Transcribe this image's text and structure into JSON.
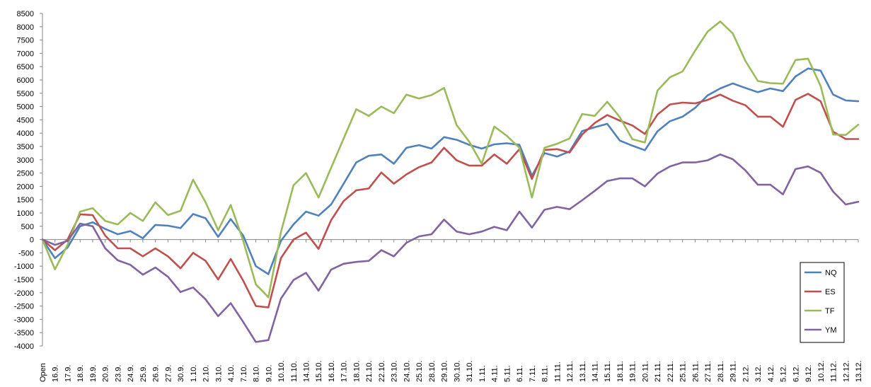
{
  "chart_data": {
    "type": "line",
    "categories": [
      "Open",
      "16.9.",
      "17.9.",
      "18.9.",
      "19.9.",
      "20.9.",
      "23.9.",
      "24.9.",
      "25.9.",
      "26.9.",
      "27.9.",
      "30.9.",
      "1.10.",
      "2.10.",
      "3.10.",
      "4.10.",
      "7.10.",
      "8.10.",
      "9.10.",
      "10.10.",
      "11.10.",
      "14.10.",
      "15.10.",
      "16.10.",
      "17.10.",
      "18.10.",
      "21.10.",
      "22.10.",
      "23.10.",
      "24.10.",
      "25.10.",
      "28.10.",
      "29.10.",
      "30.10.",
      "31.10.",
      "1.11.",
      "4.11.",
      "5.11.",
      "6.11.",
      "7.11.",
      "8.11.",
      "11.11.",
      "12.11.",
      "13.11.",
      "14.11.",
      "15.11.",
      "18.11.",
      "19.11.",
      "20.11.",
      "21.11.",
      "22.11.",
      "25.11.",
      "26.11.",
      "27.11.",
      "28.11.",
      "29.11.",
      "2.12.",
      "3.12.",
      "4.12.",
      "5.12.",
      "6.12.",
      "9.12.",
      "10.12.",
      "11.12.",
      "12.12.",
      "13.12."
    ],
    "series": [
      {
        "name": "NQ",
        "color": "#4f81bd",
        "values": [
          0,
          -700,
          -300,
          500,
          650,
          400,
          200,
          320,
          50,
          550,
          520,
          430,
          960,
          800,
          100,
          770,
          150,
          -1000,
          -1300,
          -50,
          570,
          1050,
          900,
          1320,
          2100,
          2900,
          3150,
          3200,
          2850,
          3450,
          3550,
          3420,
          3850,
          3750,
          3560,
          3420,
          3580,
          3620,
          3560,
          2400,
          3250,
          3120,
          3310,
          4080,
          4220,
          4350,
          3720,
          3530,
          3360,
          4070,
          4450,
          4620,
          4950,
          5420,
          5680,
          5870,
          5700,
          5540,
          5680,
          5580,
          6130,
          6430,
          6350,
          5450,
          5230,
          5200
        ]
      },
      {
        "name": "ES",
        "color": "#c0504d",
        "values": [
          0,
          -400,
          0,
          950,
          920,
          150,
          -330,
          -330,
          -630,
          -330,
          -630,
          -1080,
          -500,
          -800,
          -1500,
          -730,
          -1550,
          -2500,
          -2550,
          -700,
          0,
          260,
          -350,
          730,
          1450,
          1850,
          1920,
          2520,
          2100,
          2450,
          2720,
          2900,
          3450,
          2980,
          2780,
          2780,
          3200,
          2850,
          3400,
          2280,
          3370,
          3400,
          3270,
          3950,
          4380,
          4680,
          4470,
          4290,
          3970,
          4700,
          5080,
          5150,
          5120,
          5250,
          5450,
          5220,
          5050,
          4620,
          4620,
          4240,
          5250,
          5480,
          5200,
          4050,
          3780,
          3780
        ]
      },
      {
        "name": "TF",
        "color": "#9bbb59",
        "values": [
          0,
          -1120,
          -200,
          1050,
          1180,
          700,
          570,
          1000,
          700,
          1400,
          920,
          1080,
          2250,
          1400,
          350,
          1300,
          -50,
          -1680,
          -2170,
          270,
          2040,
          2500,
          1580,
          2700,
          3800,
          4900,
          4650,
          5000,
          4750,
          5450,
          5300,
          5430,
          5700,
          4300,
          3680,
          2850,
          4250,
          3900,
          3450,
          1580,
          3450,
          3600,
          3800,
          4720,
          4650,
          5180,
          4600,
          3770,
          3650,
          5600,
          6100,
          6320,
          7100,
          7820,
          8200,
          7750,
          6720,
          5960,
          5880,
          5860,
          6750,
          6800,
          5770,
          3950,
          3930,
          4320
        ]
      },
      {
        "name": "YM",
        "color": "#8064a2",
        "values": [
          0,
          -200,
          -50,
          600,
          500,
          -330,
          -780,
          -950,
          -1320,
          -1050,
          -1400,
          -1970,
          -1800,
          -2250,
          -2880,
          -2390,
          -3100,
          -3850,
          -3780,
          -2220,
          -1520,
          -1250,
          -1920,
          -1130,
          -910,
          -840,
          -800,
          -400,
          -630,
          -120,
          120,
          200,
          750,
          300,
          200,
          300,
          480,
          350,
          1050,
          450,
          1120,
          1230,
          1140,
          1480,
          1830,
          2200,
          2300,
          2300,
          2000,
          2480,
          2750,
          2900,
          2900,
          2980,
          3200,
          3020,
          2600,
          2060,
          2060,
          1700,
          2650,
          2750,
          2510,
          1800,
          1320,
          1420
        ]
      }
    ],
    "xlabel": "",
    "ylabel": "",
    "ylim": [
      -4000,
      8500
    ],
    "ytick_step": 500,
    "grid": false,
    "legend_position": "right"
  }
}
